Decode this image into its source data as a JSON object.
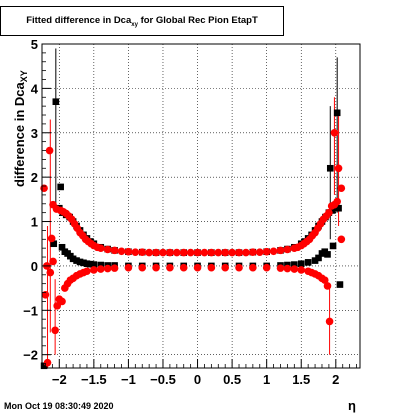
{
  "title": {
    "main": "Fitted difference in Dca",
    "sub": "xy",
    "rest": "  for Global Rec Pion EtapT"
  },
  "xlabel": "η",
  "ylabel": "difference in Dca",
  "ylabel_sub": "XY",
  "timestamp": "Mon Oct 19 08:30:49 2020",
  "colors": {
    "series1": "#000000",
    "series2": "#ff0000",
    "grid": "#000000"
  },
  "chart_data": {
    "type": "scatter",
    "xlim": [
      -2.25,
      2.35
    ],
    "ylim": [
      -2.3,
      5.0
    ],
    "xticks": [
      -2,
      -1.5,
      -1,
      -0.5,
      0,
      0.5,
      1,
      1.5,
      2
    ],
    "xtick_labels": [
      "−2",
      "−1.5",
      "−1",
      "−0.5",
      "0",
      "0.5",
      "1",
      "1.5",
      "2"
    ],
    "yticks": [
      -2,
      -1,
      0,
      1,
      2,
      3,
      4,
      5
    ],
    "ytick_labels": [
      "−2",
      "−1",
      "0",
      "1",
      "2",
      "3",
      "4",
      "5"
    ],
    "grid": true,
    "series": [
      {
        "marker": "square",
        "color": "#000000",
        "role": "mean",
        "points": [
          [
            -2.22,
            -2.25
          ],
          [
            -2.05,
            3.7
          ],
          [
            -1.98,
            1.78
          ],
          [
            -2.08,
            0.5
          ],
          [
            -1.96,
            0.42
          ],
          [
            -1.92,
            0.32
          ],
          [
            -1.88,
            0.28
          ],
          [
            -1.84,
            0.22
          ],
          [
            -1.8,
            0.16
          ],
          [
            -1.75,
            0.12
          ],
          [
            -1.7,
            0.09
          ],
          [
            -1.65,
            0.07
          ],
          [
            -1.6,
            0.05
          ],
          [
            -1.55,
            0.04
          ],
          [
            -1.5,
            0.03
          ],
          [
            -1.4,
            0.02
          ],
          [
            -1.3,
            0.01
          ],
          [
            -1.2,
            0.01
          ],
          [
            -1.0,
            0.0
          ],
          [
            -0.8,
            0.0
          ],
          [
            -0.6,
            0.0
          ],
          [
            -0.4,
            0.0
          ],
          [
            -0.2,
            0.0
          ],
          [
            0.0,
            0.0
          ],
          [
            0.2,
            0.0
          ],
          [
            0.4,
            0.0
          ],
          [
            0.6,
            0.0
          ],
          [
            0.8,
            0.0
          ],
          [
            1.0,
            0.0
          ],
          [
            1.2,
            0.01
          ],
          [
            1.3,
            0.02
          ],
          [
            1.4,
            0.03
          ],
          [
            1.5,
            0.05
          ],
          [
            1.6,
            0.08
          ],
          [
            1.7,
            0.12
          ],
          [
            1.75,
            0.18
          ],
          [
            1.8,
            0.28
          ],
          [
            1.84,
            0.32
          ],
          [
            1.88,
            0.26
          ],
          [
            1.92,
            2.2
          ],
          [
            1.96,
            0.45
          ],
          [
            2.02,
            3.45
          ],
          [
            2.04,
            1.3
          ],
          [
            2.06,
            -0.42
          ]
        ]
      },
      {
        "marker": "square",
        "color": "#000000",
        "role": "rms",
        "points": [
          [
            -2.0,
            1.3
          ],
          [
            -1.95,
            1.2
          ],
          [
            -1.9,
            1.15
          ],
          [
            -1.85,
            1.1
          ],
          [
            -1.8,
            1.0
          ],
          [
            -1.75,
            0.9
          ],
          [
            -1.7,
            0.8
          ],
          [
            -1.65,
            0.7
          ],
          [
            -1.6,
            0.62
          ],
          [
            -1.55,
            0.55
          ],
          [
            -1.5,
            0.5
          ],
          [
            -1.4,
            0.42
          ],
          [
            -1.3,
            0.38
          ],
          [
            -1.2,
            0.35
          ],
          [
            -1.0,
            0.32
          ],
          [
            -0.8,
            0.31
          ],
          [
            -0.6,
            0.3
          ],
          [
            -0.4,
            0.3
          ],
          [
            -0.2,
            0.3
          ],
          [
            0.0,
            0.3
          ],
          [
            0.2,
            0.3
          ],
          [
            0.4,
            0.3
          ],
          [
            0.6,
            0.3
          ],
          [
            0.8,
            0.31
          ],
          [
            1.0,
            0.32
          ],
          [
            1.2,
            0.35
          ],
          [
            1.3,
            0.38
          ],
          [
            1.4,
            0.42
          ],
          [
            1.5,
            0.5
          ],
          [
            1.55,
            0.55
          ],
          [
            1.6,
            0.62
          ],
          [
            1.65,
            0.7
          ],
          [
            1.7,
            0.8
          ],
          [
            1.75,
            0.9
          ],
          [
            1.8,
            1.0
          ],
          [
            1.85,
            1.1
          ],
          [
            1.9,
            1.2
          ],
          [
            1.95,
            1.25
          ]
        ]
      },
      {
        "marker": "circle",
        "color": "#ff0000",
        "role": "mean",
        "points": [
          [
            -2.2,
            -0.65
          ],
          [
            -2.17,
            -2.18
          ],
          [
            -2.13,
            -0.15
          ],
          [
            -2.11,
            0.62
          ],
          [
            -2.09,
            0.1
          ],
          [
            -2.06,
            -1.45
          ],
          [
            -2.03,
            -0.9
          ],
          [
            -2.0,
            -0.75
          ],
          [
            -1.96,
            -0.8
          ],
          [
            -1.92,
            -0.5
          ],
          [
            -1.88,
            -0.4
          ],
          [
            -1.84,
            -0.32
          ],
          [
            -1.8,
            -0.28
          ],
          [
            -1.75,
            -0.22
          ],
          [
            -1.7,
            -0.18
          ],
          [
            -1.65,
            -0.15
          ],
          [
            -1.6,
            -0.12
          ],
          [
            -1.5,
            -0.09
          ],
          [
            -1.4,
            -0.07
          ],
          [
            -1.3,
            -0.06
          ],
          [
            -1.2,
            -0.05
          ],
          [
            -1.0,
            -0.04
          ],
          [
            -0.8,
            -0.04
          ],
          [
            -0.6,
            -0.04
          ],
          [
            -0.4,
            -0.04
          ],
          [
            -0.2,
            -0.04
          ],
          [
            0.0,
            -0.04
          ],
          [
            0.2,
            -0.04
          ],
          [
            0.4,
            -0.04
          ],
          [
            0.6,
            -0.04
          ],
          [
            0.8,
            -0.04
          ],
          [
            1.0,
            -0.04
          ],
          [
            1.2,
            -0.05
          ],
          [
            1.3,
            -0.06
          ],
          [
            1.4,
            -0.07
          ],
          [
            1.5,
            -0.09
          ],
          [
            1.6,
            -0.12
          ],
          [
            1.65,
            -0.15
          ],
          [
            1.7,
            -0.18
          ],
          [
            1.75,
            -0.22
          ],
          [
            1.8,
            -0.28
          ],
          [
            1.84,
            -0.32
          ],
          [
            1.88,
            -0.45
          ],
          [
            1.91,
            -1.25
          ],
          [
            1.98,
            1.38
          ],
          [
            2.04,
            2.2
          ],
          [
            2.08,
            0.6
          ]
        ]
      },
      {
        "marker": "circle",
        "color": "#ff0000",
        "role": "rms",
        "points": [
          [
            -2.22,
            1.75
          ],
          [
            -2.18,
            0.0
          ],
          [
            -2.14,
            2.6
          ],
          [
            -2.09,
            1.38
          ],
          [
            -2.04,
            1.28
          ],
          [
            -1.98,
            1.25
          ],
          [
            -1.94,
            1.22
          ],
          [
            -1.9,
            1.18
          ],
          [
            -1.86,
            1.12
          ],
          [
            -1.82,
            1.05
          ],
          [
            -1.78,
            0.95
          ],
          [
            -1.74,
            0.85
          ],
          [
            -1.7,
            0.75
          ],
          [
            -1.66,
            0.68
          ],
          [
            -1.62,
            0.6
          ],
          [
            -1.58,
            0.55
          ],
          [
            -1.54,
            0.5
          ],
          [
            -1.5,
            0.46
          ],
          [
            -1.45,
            0.42
          ],
          [
            -1.4,
            0.4
          ],
          [
            -1.3,
            0.37
          ],
          [
            -1.2,
            0.35
          ],
          [
            -1.1,
            0.33
          ],
          [
            -1.0,
            0.32
          ],
          [
            -0.9,
            0.31
          ],
          [
            -0.8,
            0.31
          ],
          [
            -0.7,
            0.3
          ],
          [
            -0.6,
            0.3
          ],
          [
            -0.5,
            0.3
          ],
          [
            -0.4,
            0.3
          ],
          [
            -0.3,
            0.3
          ],
          [
            -0.2,
            0.3
          ],
          [
            -0.1,
            0.3
          ],
          [
            0.0,
            0.3
          ],
          [
            0.1,
            0.3
          ],
          [
            0.2,
            0.3
          ],
          [
            0.3,
            0.3
          ],
          [
            0.4,
            0.3
          ],
          [
            0.5,
            0.3
          ],
          [
            0.6,
            0.3
          ],
          [
            0.7,
            0.3
          ],
          [
            0.8,
            0.31
          ],
          [
            0.9,
            0.31
          ],
          [
            1.0,
            0.32
          ],
          [
            1.1,
            0.33
          ],
          [
            1.2,
            0.35
          ],
          [
            1.3,
            0.37
          ],
          [
            1.4,
            0.4
          ],
          [
            1.45,
            0.42
          ],
          [
            1.5,
            0.46
          ],
          [
            1.54,
            0.5
          ],
          [
            1.58,
            0.55
          ],
          [
            1.62,
            0.6
          ],
          [
            1.66,
            0.68
          ],
          [
            1.7,
            0.75
          ],
          [
            1.74,
            0.85
          ],
          [
            1.78,
            0.95
          ],
          [
            1.82,
            1.05
          ],
          [
            1.86,
            1.12
          ],
          [
            1.9,
            1.2
          ],
          [
            1.94,
            1.35
          ],
          [
            1.98,
            3.0
          ],
          [
            2.02,
            1.45
          ],
          [
            2.08,
            1.75
          ]
        ]
      }
    ],
    "error_bars": [
      {
        "x": -2.05,
        "ylo": 1.3,
        "yhi": 4.9,
        "color": "#000000"
      },
      {
        "x": -2.17,
        "ylo": -2.3,
        "yhi": 0.9,
        "color": "#ff0000"
      },
      {
        "x": -2.13,
        "ylo": -1.5,
        "yhi": 3.3,
        "color": "#ff0000"
      },
      {
        "x": -2.06,
        "ylo": -2.0,
        "yhi": -0.3,
        "color": "#ff0000"
      },
      {
        "x": 2.02,
        "ylo": 1.2,
        "yhi": 4.7,
        "color": "#000000"
      },
      {
        "x": 1.92,
        "ylo": 0.6,
        "yhi": 3.6,
        "color": "#000000"
      },
      {
        "x": 1.91,
        "ylo": -2.0,
        "yhi": -0.5,
        "color": "#ff0000"
      },
      {
        "x": 1.98,
        "ylo": 1.6,
        "yhi": 3.8,
        "color": "#ff0000"
      },
      {
        "x": 2.04,
        "ylo": 0.9,
        "yhi": 3.5,
        "color": "#ff0000"
      }
    ]
  }
}
